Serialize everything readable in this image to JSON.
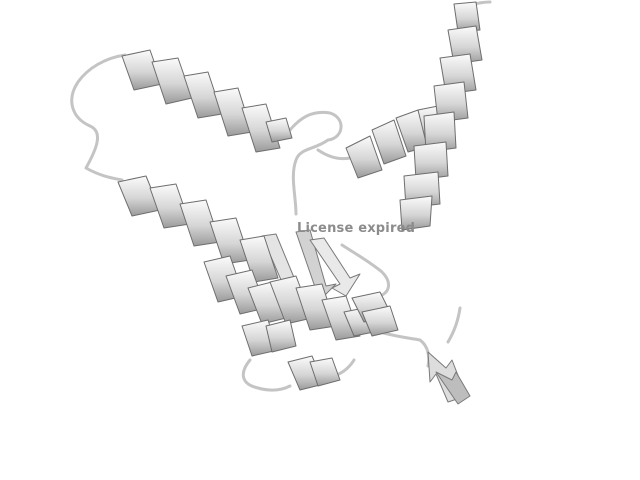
{
  "viewer": {
    "background_color": "#ffffff",
    "cartoon_light": "#f2f2f2",
    "cartoon_mid": "#c4c4c4",
    "cartoon_dark": "#8a8a8a",
    "cartoon_edge": "#6e6e6e",
    "watermark": {
      "text": "License expired",
      "color": "#8c8c8c"
    }
  }
}
